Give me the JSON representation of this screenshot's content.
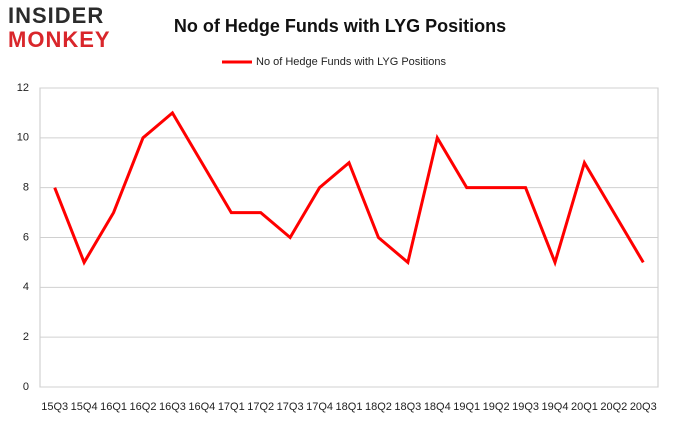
{
  "logo": [
    "INSIDER",
    "MONKEY"
  ],
  "chart_data": {
    "type": "line",
    "title": "No of Hedge Funds with LYG Positions",
    "categories": [
      "15Q3",
      "15Q4",
      "16Q1",
      "16Q2",
      "16Q3",
      "16Q4",
      "17Q1",
      "17Q2",
      "17Q3",
      "17Q4",
      "18Q1",
      "18Q2",
      "18Q3",
      "18Q4",
      "19Q1",
      "19Q2",
      "19Q3",
      "19Q4",
      "20Q1",
      "20Q2",
      "20Q3"
    ],
    "series": [
      {
        "name": "No of Hedge Funds with LYG Positions",
        "color": "#ff0000",
        "values": [
          8,
          5,
          7,
          10,
          11,
          9,
          7,
          7,
          6,
          8,
          9,
          6,
          5,
          10,
          8,
          8,
          8,
          5,
          9,
          7,
          5
        ]
      }
    ],
    "ylim": [
      0,
      12
    ],
    "yticks": [
      0,
      2,
      4,
      6,
      8,
      10,
      12
    ],
    "grid": true,
    "legend": "top"
  }
}
